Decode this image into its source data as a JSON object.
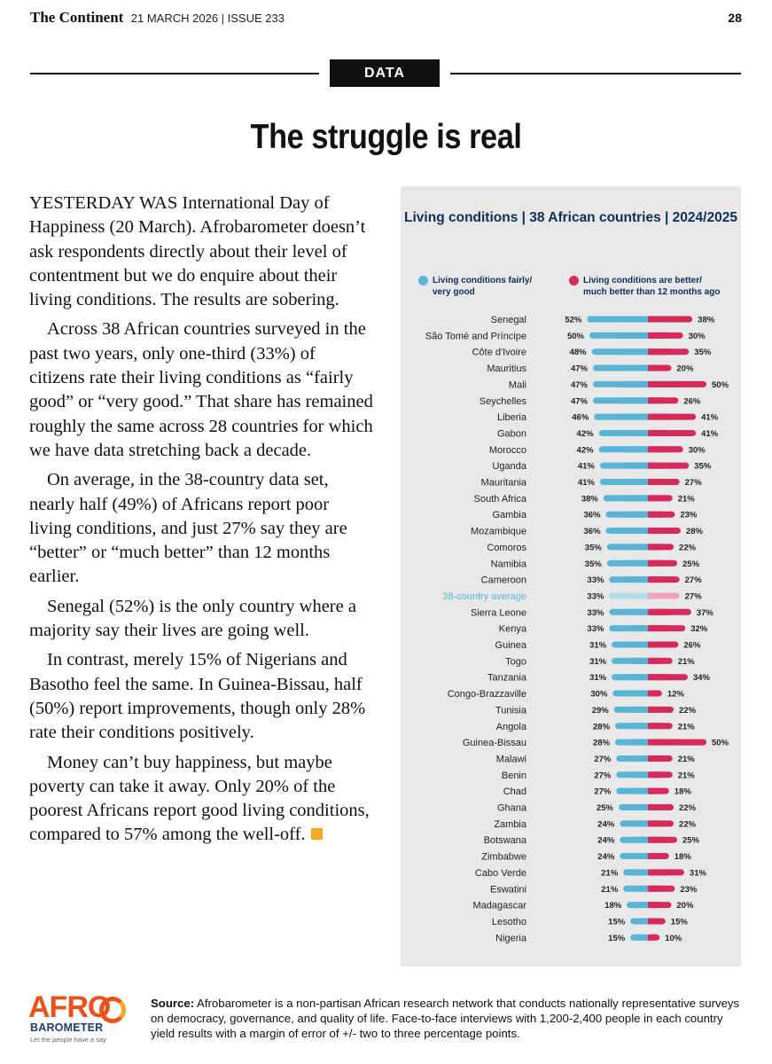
{
  "masthead": {
    "brand": "The Continent",
    "meta": "21 MARCH 2026 | ISSUE 233",
    "page_number": "28"
  },
  "section": "DATA",
  "headline": "The struggle is real",
  "article": {
    "paragraphs": [
      "YESTERDAY WAS International Day of Happiness (20 March). Afrobarometer doesn’t ask respondents directly about their level of contentment but we do enquire about their living conditions. The results are sobering.",
      "Across 38 African countries surveyed in the past two years, only one-third (33%) of citizens rate their living conditions as “fairly good” or “very good.” That share has remained roughly the same across 28 countries for which we have data stretching back a decade.",
      "On average, in the 38-country data set, nearly half (49%) of Africans report poor living conditions, and just 27% say they are “better” or “much better” than 12 months earlier.",
      "Senegal (52%) is the only country where a majority say their lives are going well.",
      "In contrast, merely 15% of Nigerians and Basotho feel the same. In Guinea-Bissau, half (50%) report improvements, though only 28% rate their conditions positively.",
      "Money can’t buy happiness, but maybe poverty can take it away. Only 20% of the poorest Africans report good living conditions, compared to 57% among the well-off."
    ]
  },
  "chart_data": {
    "type": "bar",
    "title": "Living conditions | 38 African countries | 2024/2025",
    "unit": "%",
    "colors": {
      "good": "#5ab4d6",
      "better": "#d42b5c",
      "good_average": "#b3dbea",
      "better_average": "#eea3bb",
      "average_label": "#5ab4d6",
      "panel": "#e8e8e8",
      "title": "#0e2f57"
    },
    "series": [
      {
        "name": "Living conditions fairly/ very good",
        "key": "good"
      },
      {
        "name": "Living conditions are better/ much better than 12 months ago",
        "key": "better"
      }
    ],
    "rows": [
      {
        "country": "Senegal",
        "good": 52,
        "better": 38
      },
      {
        "country": "São Tomé and Príncipe",
        "good": 50,
        "better": 30
      },
      {
        "country": "Côte d'Ivoire",
        "good": 48,
        "better": 35
      },
      {
        "country": "Mauritius",
        "good": 47,
        "better": 20
      },
      {
        "country": "Mali",
        "good": 47,
        "better": 50
      },
      {
        "country": "Seychelles",
        "good": 47,
        "better": 26
      },
      {
        "country": "Liberia",
        "good": 46,
        "better": 41
      },
      {
        "country": "Gabon",
        "good": 42,
        "better": 41
      },
      {
        "country": "Morocco",
        "good": 42,
        "better": 30
      },
      {
        "country": "Uganda",
        "good": 41,
        "better": 35
      },
      {
        "country": "Mauritania",
        "good": 41,
        "better": 27
      },
      {
        "country": "South Africa",
        "good": 38,
        "better": 21
      },
      {
        "country": "Gambia",
        "good": 36,
        "better": 23
      },
      {
        "country": "Mozambique",
        "good": 36,
        "better": 28
      },
      {
        "country": "Comoros",
        "good": 35,
        "better": 22
      },
      {
        "country": "Namibia",
        "good": 35,
        "better": 25
      },
      {
        "country": "Cameroon",
        "good": 33,
        "better": 27
      },
      {
        "country": "38-country average",
        "good": 33,
        "better": 27,
        "is_average": true
      },
      {
        "country": "Sierra Leone",
        "good": 33,
        "better": 37
      },
      {
        "country": "Kenya",
        "good": 33,
        "better": 32
      },
      {
        "country": "Guinea",
        "good": 31,
        "better": 26
      },
      {
        "country": "Togo",
        "good": 31,
        "better": 21
      },
      {
        "country": "Tanzania",
        "good": 31,
        "better": 34
      },
      {
        "country": "Congo-Brazzaville",
        "good": 30,
        "better": 12
      },
      {
        "country": "Tunisia",
        "good": 29,
        "better": 22
      },
      {
        "country": "Angola",
        "good": 28,
        "better": 21
      },
      {
        "country": "Guinea-Bissau",
        "good": 28,
        "better": 50
      },
      {
        "country": "Malawi",
        "good": 27,
        "better": 21
      },
      {
        "country": "Benin",
        "good": 27,
        "better": 21
      },
      {
        "country": "Chad",
        "good": 27,
        "better": 18
      },
      {
        "country": "Ghana",
        "good": 25,
        "better": 22
      },
      {
        "country": "Zambia",
        "good": 24,
        "better": 22
      },
      {
        "country": "Botswana",
        "good": 24,
        "better": 25
      },
      {
        "country": "Zimbabwe",
        "good": 24,
        "better": 18
      },
      {
        "country": "Cabo Verde",
        "good": 21,
        "better": 31
      },
      {
        "country": "Eswatini",
        "good": 21,
        "better": 23
      },
      {
        "country": "Madagascar",
        "good": 18,
        "better": 20
      },
      {
        "country": "Lesotho",
        "good": 15,
        "better": 15
      },
      {
        "country": "Nigeria",
        "good": 15,
        "better": 10
      }
    ]
  },
  "footer": {
    "logo_text": "AFRO",
    "logo_subtext": "BAROMETER",
    "logo_tagline": "Let the people have a say",
    "source_label": "Source:",
    "source_text": "Afrobarometer is a non-partisan African research network that conducts nationally representative surveys on democracy, governance, and quality of life. Face-to-face interviews with 1,200-2,400 people in each country yield results with a margin of error of +/- two to three percentage points."
  }
}
